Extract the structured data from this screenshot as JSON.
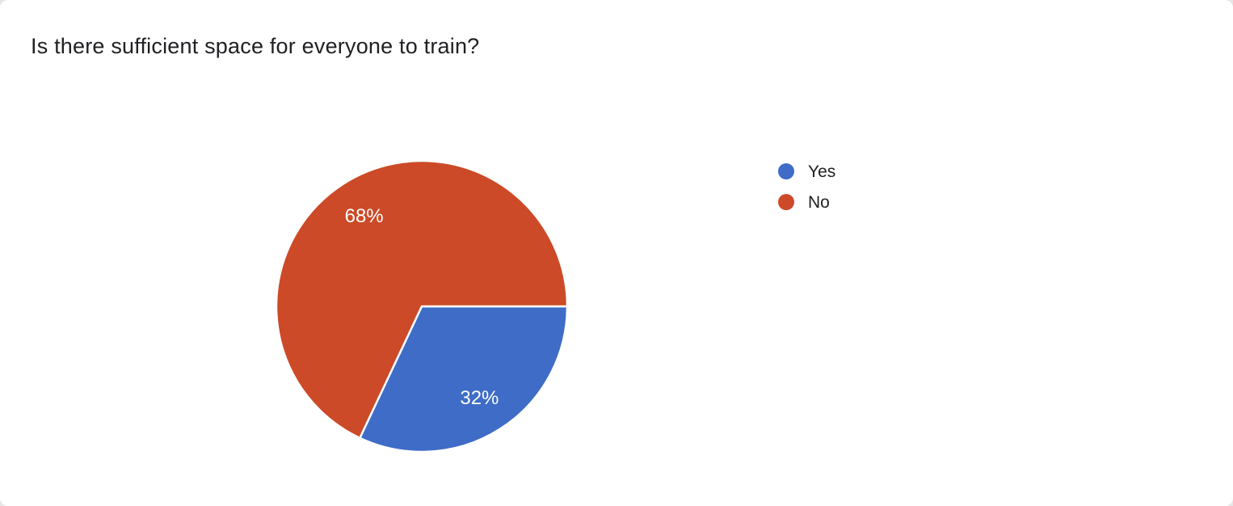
{
  "chart_data": {
    "type": "pie",
    "title": "Is there sufficient space for everyone to train?",
    "slices": [
      {
        "label": "Yes",
        "value": 32,
        "display": "32%",
        "color": "#3e6cc7"
      },
      {
        "label": "No",
        "value": 68,
        "display": "68%",
        "color": "#cc4a27"
      }
    ],
    "start_angle_deg_from_east_clockwise": 0,
    "legend_position": "right",
    "slice_border_color": "#ffffff",
    "label_color": "#ffffff",
    "title_color": "#202124"
  }
}
